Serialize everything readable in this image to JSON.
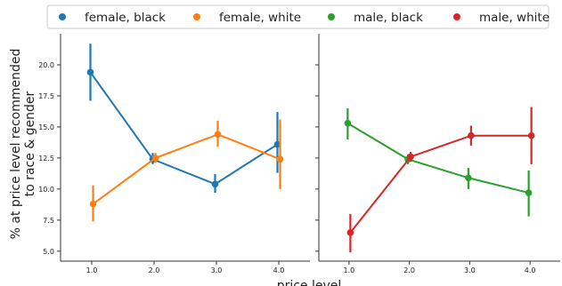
{
  "chart_data": {
    "type": "line",
    "style": "pointplot with error bars",
    "xlabel": "price level",
    "ylabel_lines": [
      "% at price level recommended",
      "to race & gender"
    ],
    "x_categories": [
      "1.0",
      "2.0",
      "3.0",
      "4.0"
    ],
    "ylim": [
      4.2,
      22.5
    ],
    "yticks": [
      5.0,
      7.5,
      10.0,
      12.5,
      15.0,
      17.5,
      20.0
    ],
    "ytick_labels": [
      "5.0",
      "7.5",
      "10.0",
      "12.5",
      "15.0",
      "17.5",
      "20.0"
    ],
    "sharey": true,
    "grid": false,
    "legend_position": "top, outside plot, single row",
    "legend": [
      {
        "label": "female, black",
        "color": "#1f77b4"
      },
      {
        "label": "female, white",
        "color": "#ff7f0e"
      },
      {
        "label": "male, black",
        "color": "#2ca02c"
      },
      {
        "label": "male, white",
        "color": "#d62728"
      }
    ],
    "panels": [
      {
        "series": [
          {
            "name": "female, black",
            "color": "#1f77b4",
            "values": [
              19.4,
              12.4,
              10.4,
              13.6
            ],
            "err_low": [
              17.1,
              12.0,
              9.7,
              11.3
            ],
            "err_high": [
              21.7,
              12.9,
              11.2,
              16.2
            ]
          },
          {
            "name": "female, white",
            "color": "#ff7f0e",
            "values": [
              8.8,
              12.5,
              14.4,
              12.4
            ],
            "err_low": [
              7.4,
              12.1,
              13.4,
              10.0
            ],
            "err_high": [
              10.3,
              12.9,
              15.5,
              15.6
            ]
          }
        ]
      },
      {
        "series": [
          {
            "name": "male, black",
            "color": "#2ca02c",
            "values": [
              15.3,
              12.4,
              10.9,
              9.7
            ],
            "err_low": [
              14.0,
              12.0,
              10.0,
              7.8
            ],
            "err_high": [
              16.5,
              12.8,
              11.7,
              11.5
            ]
          },
          {
            "name": "male, white",
            "color": "#d62728",
            "values": [
              6.5,
              12.6,
              14.3,
              14.3
            ],
            "err_low": [
              4.9,
              12.2,
              13.5,
              12.0
            ],
            "err_high": [
              8.0,
              13.0,
              15.1,
              16.6
            ]
          }
        ]
      }
    ]
  }
}
